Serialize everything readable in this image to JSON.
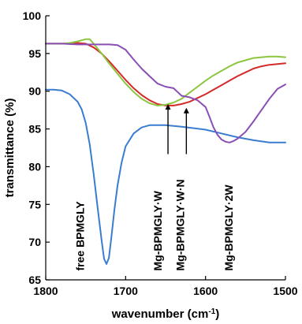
{
  "chart_data": {
    "type": "line",
    "title": "",
    "xlabel": "wavenumber (cm",
    "xlabel_sup": "-1",
    "xlabel_end": ")",
    "ylabel": "transmittance (%)",
    "xlim": [
      1800,
      1500
    ],
    "ylim": [
      65,
      100
    ],
    "x_ticks": [
      1800,
      1700,
      1600,
      1500
    ],
    "y_ticks": [
      65,
      70,
      75,
      80,
      85,
      90,
      95,
      100
    ],
    "x_tick_labels": [
      "1800",
      "1700",
      "1600",
      "1500"
    ],
    "y_tick_labels": [
      "65",
      "70",
      "75",
      "80",
      "85",
      "90",
      "95",
      "100"
    ],
    "grid": false,
    "legend": "none",
    "series": [
      {
        "color": "#3a7dd0",
        "points": [
          [
            1800,
            90.2
          ],
          [
            1790,
            90.2
          ],
          [
            1780,
            90.1
          ],
          [
            1770,
            89.6
          ],
          [
            1760,
            88.6
          ],
          [
            1755,
            87.6
          ],
          [
            1750,
            85.8
          ],
          [
            1745,
            83.0
          ],
          [
            1740,
            79.0
          ],
          [
            1735,
            74.5
          ],
          [
            1730,
            70.2
          ],
          [
            1727,
            67.8
          ],
          [
            1724,
            67.1
          ],
          [
            1721,
            67.9
          ],
          [
            1718,
            70.5
          ],
          [
            1714,
            74.3
          ],
          [
            1710,
            77.6
          ],
          [
            1705,
            80.6
          ],
          [
            1700,
            82.7
          ],
          [
            1690,
            84.4
          ],
          [
            1680,
            85.2
          ],
          [
            1670,
            85.5
          ],
          [
            1660,
            85.5
          ],
          [
            1650,
            85.5
          ],
          [
            1630,
            85.3
          ],
          [
            1600,
            84.9
          ],
          [
            1580,
            84.4
          ],
          [
            1560,
            83.9
          ],
          [
            1540,
            83.5
          ],
          [
            1520,
            83.2
          ],
          [
            1500,
            83.2
          ]
        ]
      },
      {
        "color": "#d42a2a",
        "points": [
          [
            1800,
            96.3
          ],
          [
            1780,
            96.3
          ],
          [
            1760,
            96.4
          ],
          [
            1750,
            96.3
          ],
          [
            1740,
            95.8
          ],
          [
            1730,
            95.0
          ],
          [
            1720,
            93.9
          ],
          [
            1710,
            92.7
          ],
          [
            1700,
            91.5
          ],
          [
            1690,
            90.4
          ],
          [
            1680,
            89.5
          ],
          [
            1670,
            88.8
          ],
          [
            1660,
            88.3
          ],
          [
            1650,
            88.1
          ],
          [
            1640,
            88.1
          ],
          [
            1630,
            88.3
          ],
          [
            1620,
            88.6
          ],
          [
            1610,
            89.1
          ],
          [
            1600,
            89.6
          ],
          [
            1590,
            90.2
          ],
          [
            1580,
            90.8
          ],
          [
            1570,
            91.4
          ],
          [
            1560,
            92.0
          ],
          [
            1550,
            92.5
          ],
          [
            1540,
            93.0
          ],
          [
            1530,
            93.3
          ],
          [
            1520,
            93.5
          ],
          [
            1510,
            93.6
          ],
          [
            1500,
            93.7
          ]
        ]
      },
      {
        "color": "#8cc63f",
        "points": [
          [
            1800,
            96.3
          ],
          [
            1780,
            96.3
          ],
          [
            1770,
            96.4
          ],
          [
            1760,
            96.6
          ],
          [
            1750,
            96.9
          ],
          [
            1745,
            96.9
          ],
          [
            1740,
            96.3
          ],
          [
            1730,
            95.0
          ],
          [
            1720,
            93.6
          ],
          [
            1710,
            92.3
          ],
          [
            1700,
            91.0
          ],
          [
            1690,
            89.9
          ],
          [
            1680,
            89.0
          ],
          [
            1670,
            88.4
          ],
          [
            1660,
            88.1
          ],
          [
            1650,
            88.2
          ],
          [
            1640,
            88.5
          ],
          [
            1630,
            89.0
          ],
          [
            1620,
            89.8
          ],
          [
            1610,
            90.6
          ],
          [
            1600,
            91.4
          ],
          [
            1590,
            92.1
          ],
          [
            1580,
            92.7
          ],
          [
            1570,
            93.3
          ],
          [
            1560,
            93.8
          ],
          [
            1550,
            94.1
          ],
          [
            1540,
            94.4
          ],
          [
            1530,
            94.5
          ],
          [
            1520,
            94.6
          ],
          [
            1510,
            94.6
          ],
          [
            1500,
            94.5
          ]
        ]
      },
      {
        "color": "#8a4fb5",
        "points": [
          [
            1800,
            96.3
          ],
          [
            1780,
            96.3
          ],
          [
            1760,
            96.2
          ],
          [
            1740,
            96.2
          ],
          [
            1720,
            96.2
          ],
          [
            1710,
            96.1
          ],
          [
            1700,
            95.5
          ],
          [
            1690,
            94.2
          ],
          [
            1680,
            93.0
          ],
          [
            1670,
            92.0
          ],
          [
            1660,
            91.0
          ],
          [
            1650,
            90.6
          ],
          [
            1640,
            90.4
          ],
          [
            1635,
            89.9
          ],
          [
            1630,
            89.4
          ],
          [
            1620,
            89.2
          ],
          [
            1610,
            88.8
          ],
          [
            1600,
            87.9
          ],
          [
            1595,
            86.6
          ],
          [
            1590,
            85.2
          ],
          [
            1585,
            84.2
          ],
          [
            1580,
            83.6
          ],
          [
            1575,
            83.3
          ],
          [
            1570,
            83.2
          ],
          [
            1565,
            83.4
          ],
          [
            1560,
            83.7
          ],
          [
            1550,
            84.6
          ],
          [
            1540,
            86.0
          ],
          [
            1530,
            87.5
          ],
          [
            1520,
            89.0
          ],
          [
            1510,
            90.3
          ],
          [
            1500,
            90.9
          ]
        ]
      }
    ],
    "annotations": [
      {
        "text": "free BPMGLY",
        "x": 1752,
        "y": 66.2,
        "arrow": false
      },
      {
        "text": "Mg-BPMGLY·W",
        "x": 1655,
        "y": 66.2,
        "arrow": true,
        "arrow_tip": [
          1647,
          88.3
        ]
      },
      {
        "text": "Mg-BPMGLY·W·N",
        "x": 1627,
        "y": 66.2,
        "arrow": true,
        "arrow_tip": [
          1624,
          87.8
        ]
      },
      {
        "text": "Mg-BPMGLY·2W",
        "x": 1566,
        "y": 66.2,
        "arrow": false
      }
    ]
  }
}
